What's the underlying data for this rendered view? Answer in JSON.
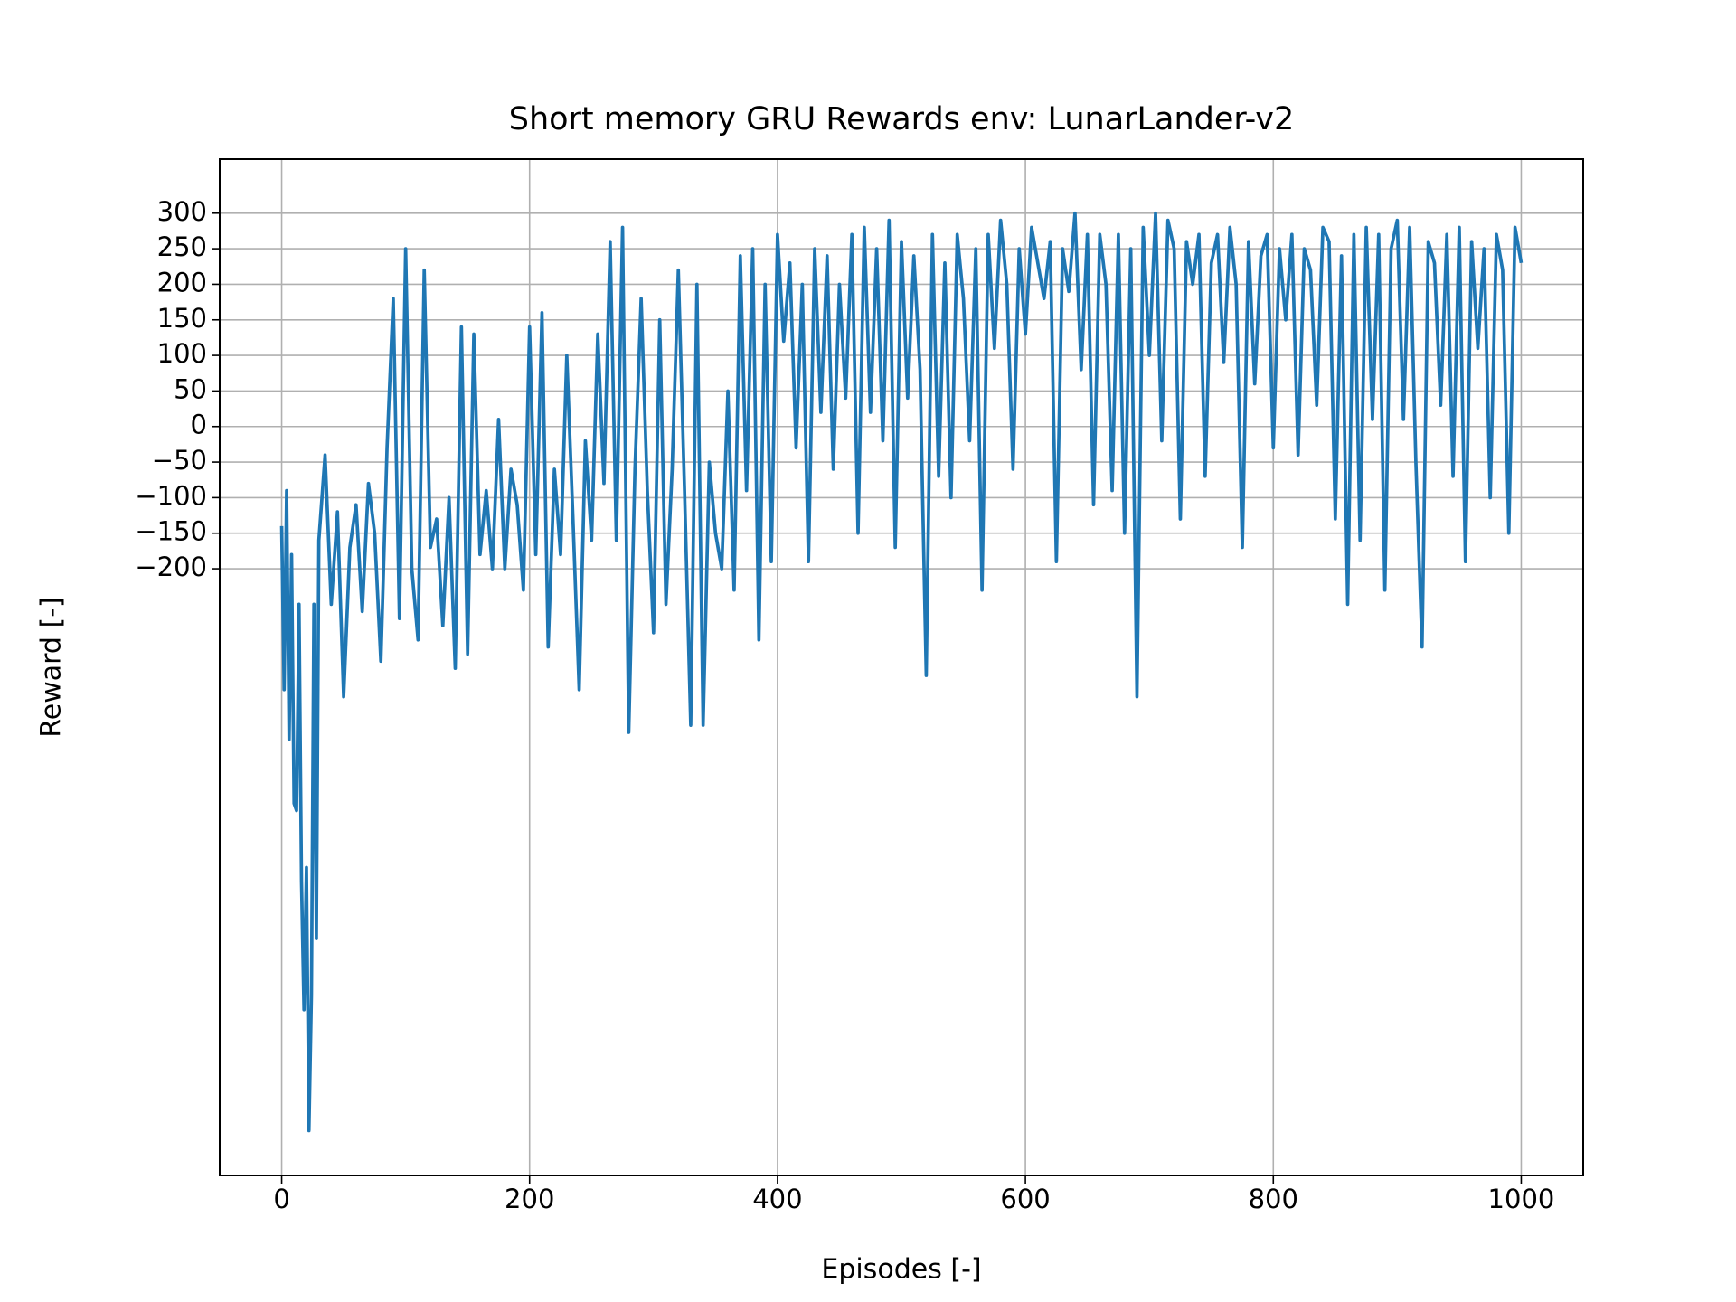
{
  "chart_data": {
    "type": "line",
    "title": "Short memory GRU Rewards env: LunarLander-v2",
    "x_label": "Episodes [-]",
    "y_label": "Reward [-]",
    "x": [
      0,
      2,
      4,
      6,
      8,
      10,
      12,
      14,
      16,
      18,
      20,
      22,
      24,
      26,
      28,
      30,
      35,
      40,
      45,
      50,
      55,
      60,
      65,
      70,
      75,
      80,
      85,
      90,
      95,
      100,
      105,
      110,
      115,
      120,
      125,
      130,
      135,
      140,
      145,
      150,
      155,
      160,
      165,
      170,
      175,
      180,
      185,
      190,
      195,
      200,
      205,
      210,
      215,
      220,
      225,
      230,
      235,
      240,
      245,
      250,
      255,
      260,
      265,
      270,
      275,
      280,
      285,
      290,
      295,
      300,
      305,
      310,
      315,
      320,
      325,
      330,
      335,
      340,
      345,
      350,
      355,
      360,
      365,
      370,
      375,
      380,
      385,
      390,
      395,
      400,
      405,
      410,
      415,
      420,
      425,
      430,
      435,
      440,
      445,
      450,
      455,
      460,
      465,
      470,
      475,
      480,
      485,
      490,
      495,
      500,
      505,
      510,
      515,
      520,
      525,
      530,
      535,
      540,
      545,
      550,
      555,
      560,
      565,
      570,
      575,
      580,
      585,
      590,
      595,
      600,
      605,
      610,
      615,
      620,
      625,
      630,
      635,
      640,
      645,
      650,
      655,
      660,
      665,
      670,
      675,
      680,
      685,
      690,
      695,
      700,
      705,
      710,
      715,
      720,
      725,
      730,
      735,
      740,
      745,
      750,
      755,
      760,
      765,
      770,
      775,
      780,
      785,
      790,
      795,
      800,
      805,
      810,
      815,
      820,
      825,
      830,
      835,
      840,
      845,
      850,
      855,
      860,
      865,
      870,
      875,
      880,
      885,
      890,
      895,
      900,
      905,
      910,
      915,
      920,
      925,
      930,
      935,
      940,
      945,
      950,
      955,
      960,
      965,
      970,
      975,
      980,
      985,
      990,
      995,
      1000
    ],
    "series": [
      {
        "name": "Reward",
        "color": "#1f77b4",
        "values": [
          -140,
          -370,
          -90,
          -440,
          -180,
          -530,
          -540,
          -250,
          -640,
          -820,
          -620,
          -990,
          -800,
          -250,
          -720,
          -160,
          -40,
          -250,
          -120,
          -380,
          -170,
          -110,
          -260,
          -80,
          -150,
          -330,
          -30,
          180,
          -270,
          250,
          -200,
          -300,
          220,
          -170,
          -130,
          -280,
          -100,
          -340,
          140,
          -320,
          130,
          -180,
          -90,
          -200,
          10,
          -200,
          -60,
          -110,
          -230,
          140,
          -180,
          160,
          -310,
          -60,
          -180,
          100,
          -130,
          -370,
          -20,
          -160,
          130,
          -80,
          260,
          -160,
          280,
          -430,
          -60,
          180,
          -90,
          -290,
          150,
          -250,
          -60,
          220,
          -90,
          -420,
          200,
          -420,
          -50,
          -150,
          -200,
          50,
          -230,
          240,
          -90,
          250,
          -300,
          200,
          -190,
          270,
          120,
          230,
          -30,
          200,
          -190,
          250,
          20,
          240,
          -60,
          200,
          40,
          270,
          -150,
          280,
          20,
          250,
          -20,
          290,
          -170,
          260,
          40,
          240,
          80,
          -350,
          270,
          -70,
          230,
          -100,
          270,
          180,
          -20,
          250,
          -230,
          270,
          110,
          290,
          200,
          -60,
          250,
          130,
          280,
          230,
          180,
          260,
          -190,
          250,
          190,
          300,
          80,
          270,
          -110,
          270,
          200,
          -90,
          270,
          -150,
          250,
          -380,
          280,
          100,
          300,
          -20,
          290,
          250,
          -130,
          260,
          200,
          270,
          -70,
          230,
          270,
          90,
          280,
          200,
          -170,
          260,
          60,
          240,
          270,
          -30,
          250,
          150,
          270,
          -40,
          250,
          220,
          30,
          280,
          260,
          -130,
          240,
          -250,
          270,
          -160,
          280,
          10,
          270,
          -230,
          250,
          290,
          10,
          280,
          -50,
          -310,
          260,
          230,
          30,
          270,
          -70,
          280,
          -190,
          260,
          110,
          250,
          -100,
          270,
          220,
          -150,
          280,
          230
        ]
      }
    ],
    "xlim": [
      -50,
      1050
    ],
    "ylim": [
      -1053,
      376
    ],
    "xticks": [
      0,
      200,
      400,
      600,
      800,
      1000
    ],
    "yticks": [
      {
        "value": -200,
        "label": "−200"
      },
      {
        "value": -150,
        "label": "−150"
      },
      {
        "value": -100,
        "label": "−100"
      },
      {
        "value": -50,
        "label": "−50"
      },
      0,
      50,
      100,
      150,
      200,
      250,
      300
    ],
    "grid": true
  }
}
